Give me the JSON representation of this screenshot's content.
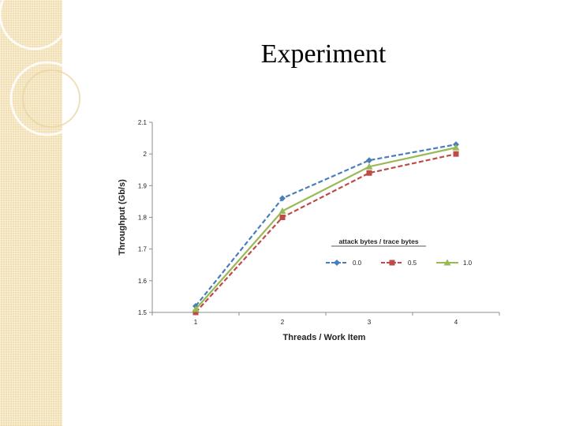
{
  "slide": {
    "title": "Experiment",
    "accent_color": "#f1dfb2"
  },
  "chart_data": {
    "type": "line",
    "title": "",
    "xlabel": "Threads / Work Item",
    "ylabel": "Throughput (Gb/s)",
    "categories": [
      "1",
      "2",
      "3",
      "4"
    ],
    "x": [
      1,
      2,
      3,
      4
    ],
    "ylim": [
      1.5,
      2.1
    ],
    "yticks": [
      "1.5",
      "1.6",
      "1.7",
      "1.8",
      "1.9",
      "2",
      "2.1"
    ],
    "grid": false,
    "legend": {
      "title": "attack bytes / trace bytes",
      "placement": "center-right"
    },
    "series": [
      {
        "name": "0.0",
        "values": [
          1.52,
          1.86,
          1.98,
          2.03
        ],
        "color": "#4a7ebb",
        "dash": "dashed",
        "marker": "diamond"
      },
      {
        "name": "0.5",
        "values": [
          1.5,
          1.8,
          1.94,
          2.0
        ],
        "color": "#be4b48",
        "dash": "dashed",
        "marker": "square"
      },
      {
        "name": "1.0",
        "values": [
          1.51,
          1.82,
          1.96,
          2.02
        ],
        "color": "#98b954",
        "dash": "solid",
        "marker": "triangle"
      }
    ]
  }
}
